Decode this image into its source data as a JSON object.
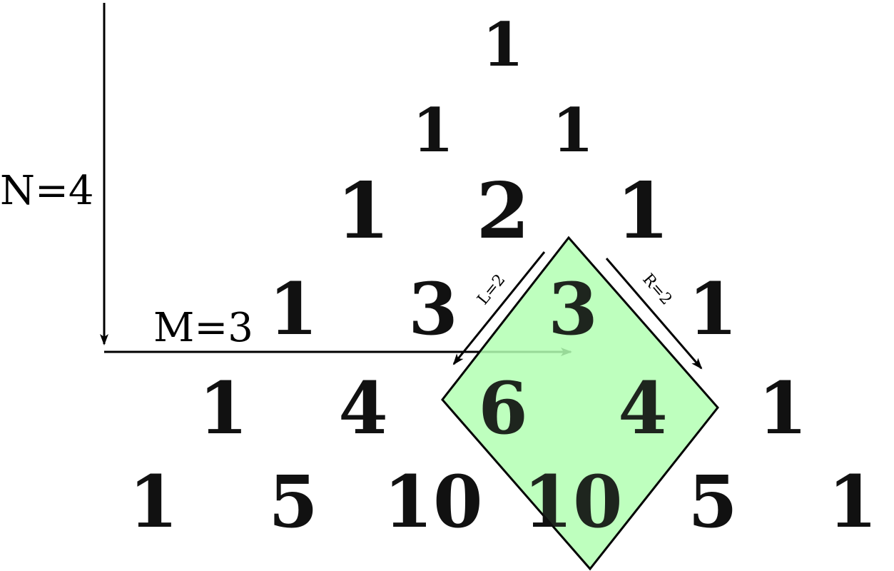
{
  "triangle": {
    "rows": [
      [
        "1"
      ],
      [
        "1",
        "1"
      ],
      [
        "1",
        "2",
        "1"
      ],
      [
        "1",
        "3",
        "3",
        "1"
      ],
      [
        "1",
        "4",
        "6",
        "4",
        "1"
      ],
      [
        "1",
        "5",
        "10",
        "10",
        "5",
        "1"
      ]
    ]
  },
  "annotations": {
    "n_label": "N=4",
    "m_label": "M=3",
    "l_label": "L=2",
    "r_label": "R=2"
  },
  "colors": {
    "highlight_fill": "#b3ffb3",
    "highlight_stroke": "#000000",
    "text": "#111111"
  }
}
